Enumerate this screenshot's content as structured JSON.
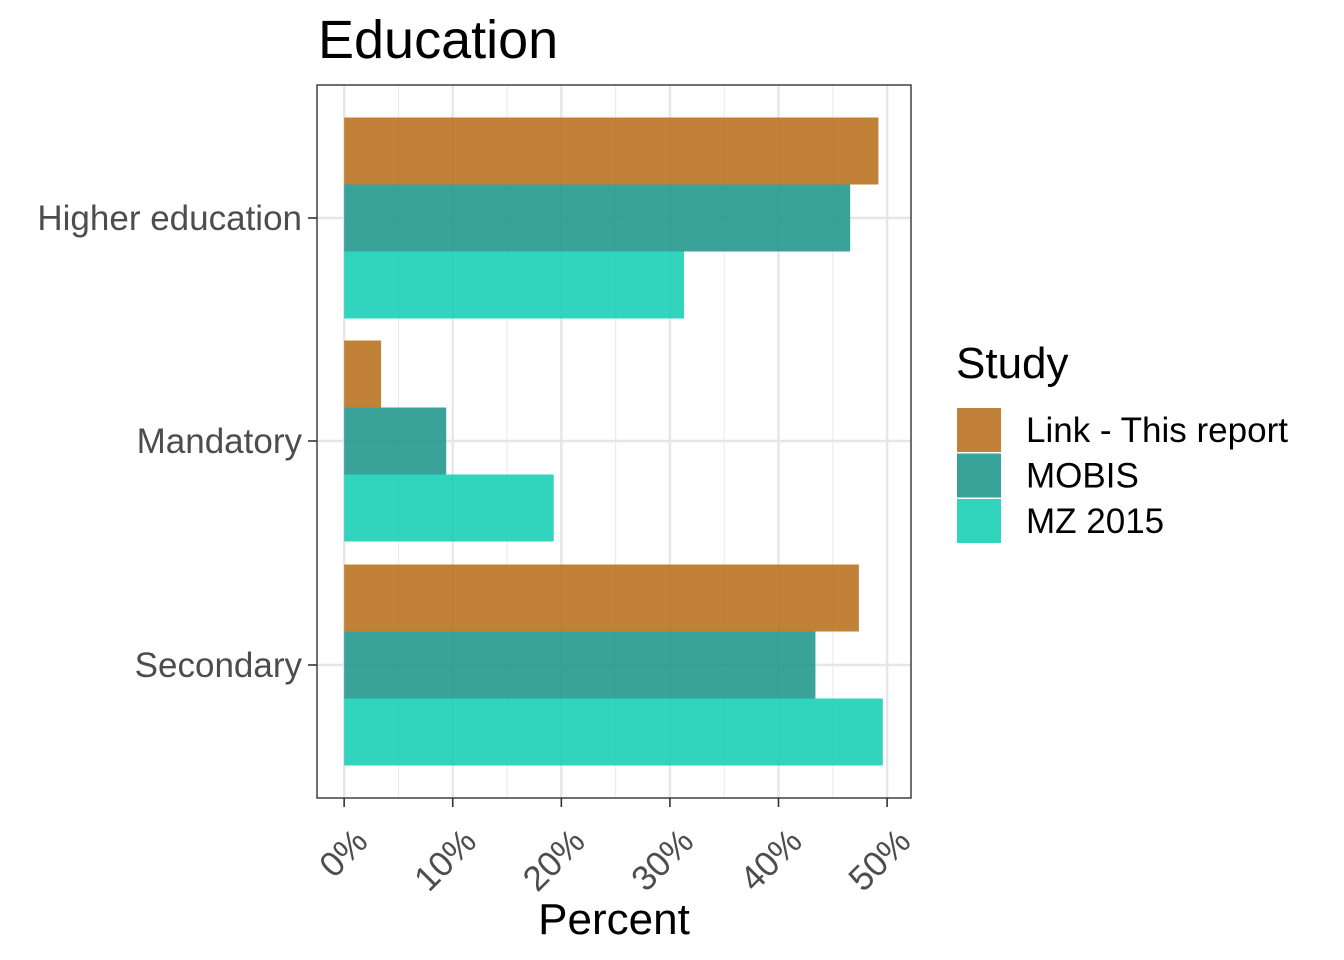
{
  "chart_data": {
    "type": "bar",
    "orientation": "horizontal",
    "title": "Education",
    "xlabel": "Percent",
    "ylabel": "",
    "categories": [
      "Higher education",
      "Mandatory",
      "Secondary"
    ],
    "series": [
      {
        "name": "Link - This report",
        "color": "#b8701e",
        "values": [
          49.2,
          3.4,
          47.4
        ]
      },
      {
        "name": "MOBIS",
        "color": "#1f968b",
        "values": [
          46.6,
          9.4,
          43.4
        ]
      },
      {
        "name": "MZ 2015",
        "color": "#14ceb3",
        "values": [
          31.3,
          19.3,
          49.6
        ]
      }
    ],
    "xlim": [
      -2.5,
      52.2
    ],
    "x_ticks": [
      0,
      10,
      20,
      30,
      40,
      50
    ],
    "x_tick_labels": [
      "0%",
      "10%",
      "20%",
      "30%",
      "40%",
      "50%"
    ],
    "grid": true,
    "legend": {
      "title": "Study",
      "position": "right"
    }
  }
}
